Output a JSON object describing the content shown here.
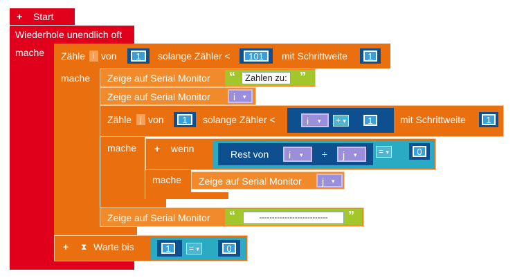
{
  "blocks": {
    "start": {
      "plus": "+",
      "label": "Start"
    },
    "forever": {
      "label": "Wiederhole unendlich oft",
      "do_label": "mache"
    },
    "outer_loop": {
      "count_label": "Zähle",
      "var": "i",
      "from_label": "von",
      "from_value": "1",
      "while_label": "solange Zähler <",
      "to_value": "101",
      "step_label": "mit Schrittweite",
      "step_value": "1",
      "do_label": "mache"
    },
    "print_header": {
      "label": "Zeige auf Serial Monitor",
      "quote_open": "“",
      "text": "Zahlen zu:",
      "quote_close": "”"
    },
    "print_i": {
      "label": "Zeige auf Serial Monitor",
      "var": "i"
    },
    "inner_loop": {
      "count_label": "Zähle",
      "var": "j",
      "from_label": "von",
      "from_value": "1",
      "while_label": "solange Zähler <",
      "expr_left": "i",
      "expr_op": "+",
      "expr_right": "1",
      "step_label": "mit Schrittweite",
      "step_value": "1",
      "do_label": "mache"
    },
    "if_block": {
      "plus": "+",
      "label": "wenn",
      "rest_label": "Rest von",
      "rest_left": "i",
      "rest_div": "÷",
      "rest_right": "j",
      "cmp_op": "=",
      "cmp_value": "0",
      "do_label": "mache"
    },
    "print_j": {
      "label": "Zeige auf Serial Monitor",
      "var": "j"
    },
    "print_separator": {
      "label": "Zeige auf Serial Monitor",
      "quote_open": "“",
      "text": "---------------------------",
      "quote_close": "”"
    },
    "wait_until": {
      "plus": "+",
      "hourglass": "⧗",
      "label": "Warte bis",
      "left": "1",
      "op": "=",
      "right": "0"
    }
  },
  "icons": {
    "dropdown": "▾"
  },
  "colors": {
    "control_red": "#e0001b",
    "loop_orange": "#ea6f0e",
    "text_green": "#a3c62a",
    "logic_teal": "#2aaac3",
    "math_blue": "#0e4f8f",
    "variable_purple": "#7a6cc1"
  }
}
